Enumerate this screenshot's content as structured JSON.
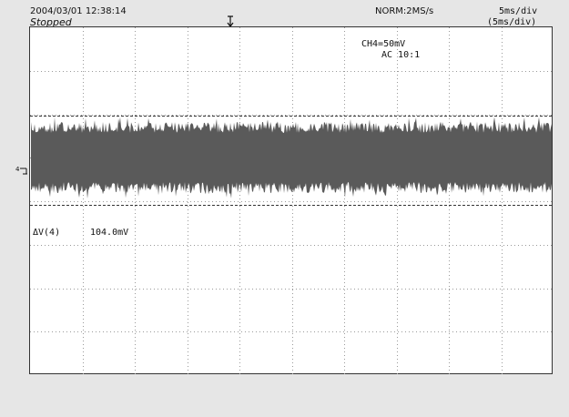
{
  "header": {
    "datetime": "2004/03/01  12:38:14",
    "status": "Stopped",
    "acquisition": "NORM:2MS/s",
    "timebase": "5ms/div",
    "timebase_sub": "(5ms/div)"
  },
  "channel": {
    "scale": "CH4=50mV",
    "coupling": "AC  10:1",
    "ground_label": "4",
    "color": "#555555"
  },
  "measurement": {
    "label": "ΔV(4)",
    "value": "104.0mV"
  },
  "display": {
    "grid_divisions_x": 10,
    "grid_divisions_y": 8,
    "trace_color": "#5a5a5a",
    "background": "#ffffff",
    "grid_color": "#9a9a9a"
  }
}
